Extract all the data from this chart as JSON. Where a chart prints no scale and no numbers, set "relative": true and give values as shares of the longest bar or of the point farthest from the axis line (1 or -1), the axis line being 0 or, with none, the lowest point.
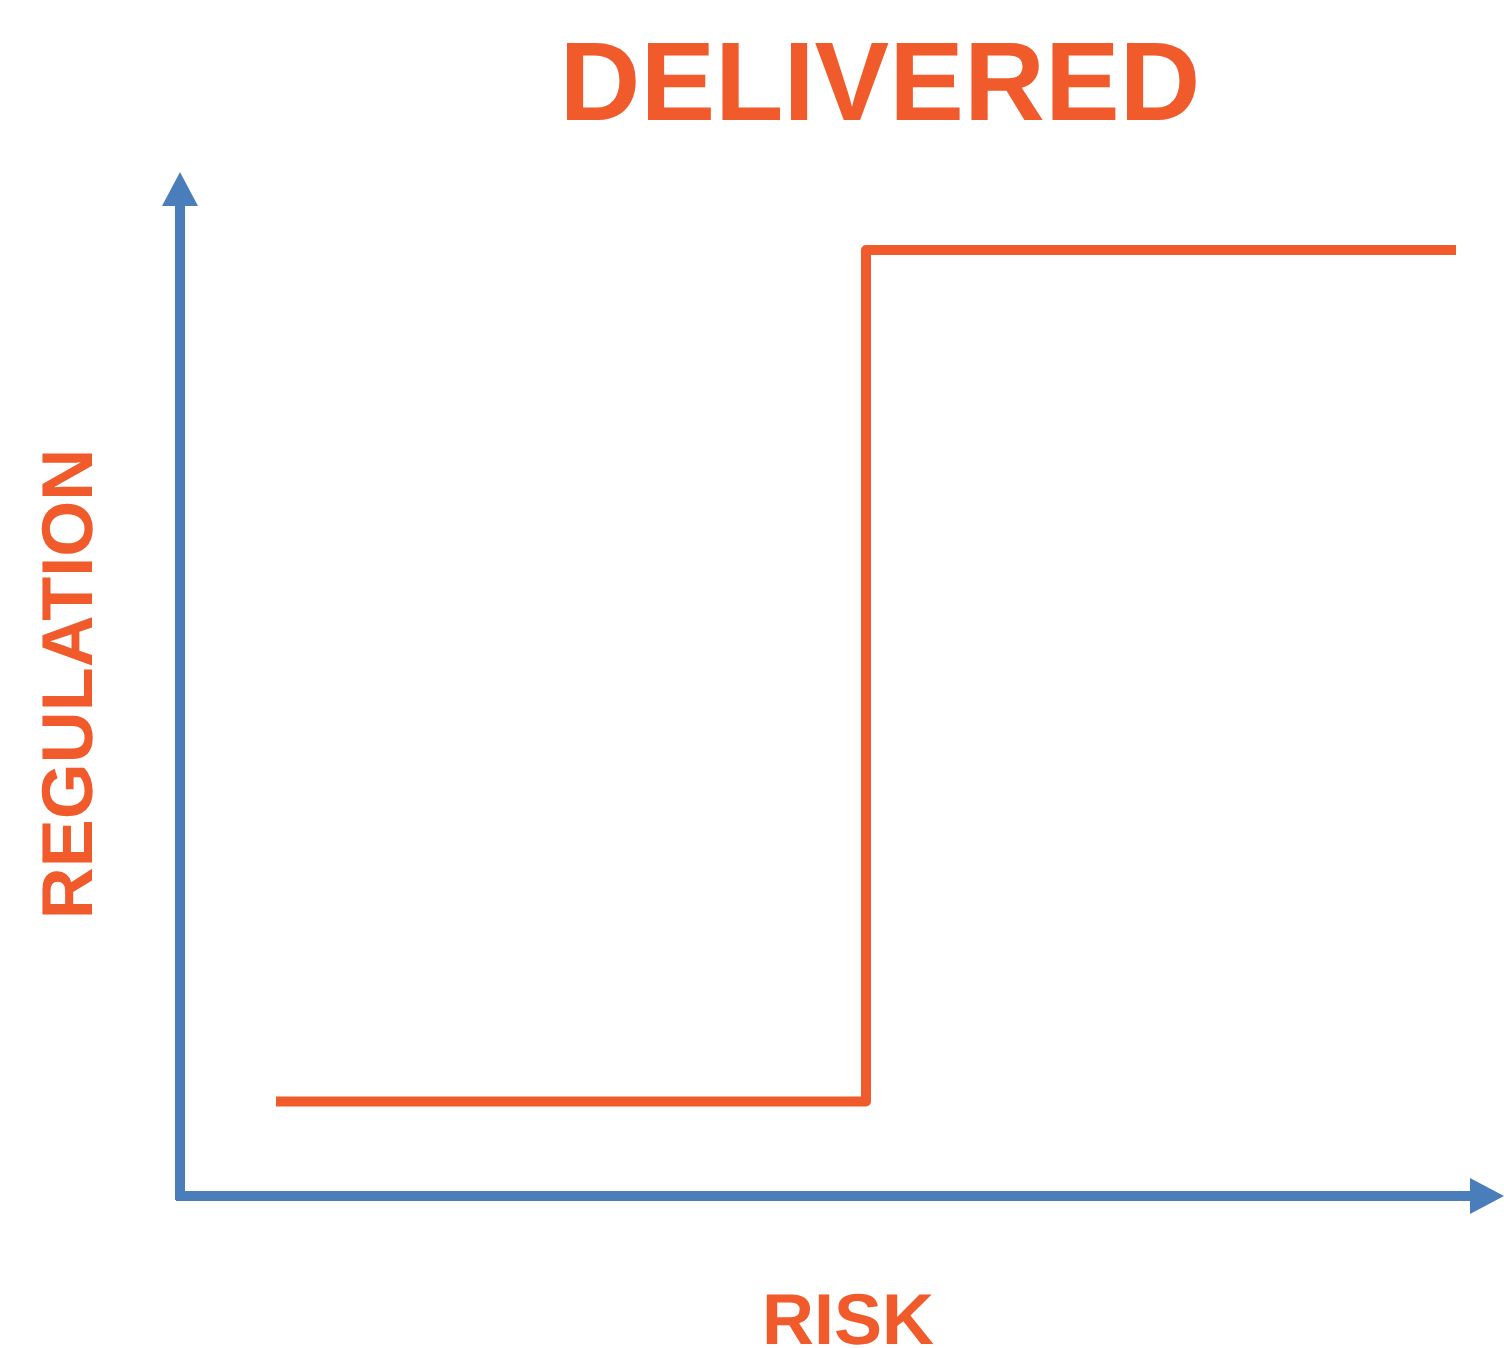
{
  "chart_data": {
    "type": "step",
    "title": "DELIVERED",
    "xlabel": "RISK",
    "ylabel": "REGULATION",
    "relative": true,
    "categories": [
      null,
      null,
      null
    ],
    "values": [
      0.1,
      1,
      1
    ],
    "color": "#f15a2b"
  }
}
